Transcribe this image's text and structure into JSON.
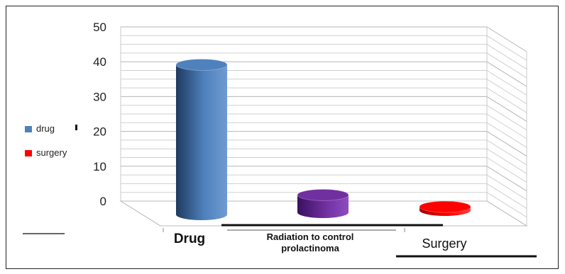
{
  "chart_data": {
    "type": "bar",
    "categories": [
      "Drug",
      "Radiation to control prolactinoma",
      "Surgery"
    ],
    "category_lines": [
      [
        "Drug"
      ],
      [
        "Radiation to control",
        "prolactinoma"
      ],
      [
        "Surgery"
      ]
    ],
    "values": [
      43,
      5,
      1
    ],
    "colors": [
      "#4f81bd",
      "#7030a0",
      "#ff0000"
    ],
    "ylim": [
      0,
      50
    ],
    "yticks": [
      0,
      10,
      20,
      30,
      40,
      50
    ],
    "grid": true,
    "legend_position": "left",
    "legend": [
      {
        "label": "drug",
        "color": "#4f81bd"
      },
      {
        "label": "surgery",
        "color": "#ff0000"
      }
    ]
  }
}
